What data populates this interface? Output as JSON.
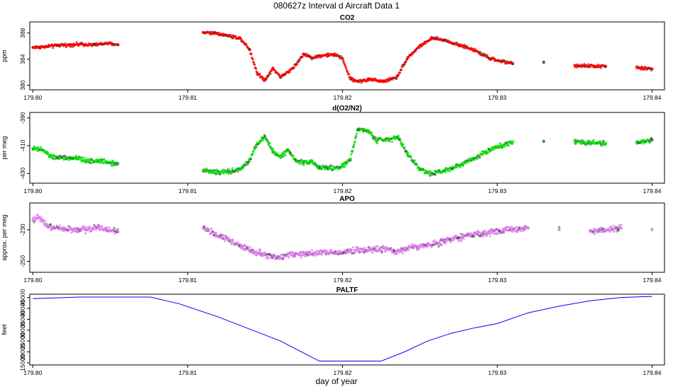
{
  "title": "080627z   Interval d Aircraft Data 1",
  "xlabel": "day of year",
  "chart_data": [
    {
      "type": "scatter",
      "title": "CO2",
      "ylabel": "ppm",
      "color": "#ff0000",
      "xlim": [
        179.7998,
        179.8408
      ],
      "ylim": [
        379.3,
        389.7
      ],
      "xticks": [
        179.8,
        179.81,
        179.82,
        179.83,
        179.84
      ],
      "xtick_labels": [
        "179.80",
        "179.81",
        "179.82",
        "179.83",
        "179.84"
      ],
      "yticks": [
        380,
        384,
        388
      ],
      "ytick_labels": [
        "380",
        "384",
        "388"
      ],
      "series": [
        {
          "x": [
            179.8,
            179.8008,
            179.8016,
            179.8024,
            179.8032,
            179.804,
            179.8048,
            179.8055,
            179.811,
            179.8118,
            179.8126,
            179.8134,
            179.814,
            179.8145,
            179.815,
            179.8155,
            179.816,
            179.8165,
            179.817,
            179.8175,
            179.818,
            179.8185,
            179.819,
            179.8195,
            179.82,
            179.8205,
            179.821,
            179.8218,
            179.8226,
            179.8235,
            179.8242,
            179.825,
            179.8258,
            179.8266,
            179.8275,
            179.8285,
            179.8295,
            179.831,
            179.833,
            179.835,
            179.837,
            179.839,
            179.84
          ],
          "y": [
            385.8,
            385.9,
            386.1,
            386.2,
            386.3,
            386.2,
            386.4,
            386.2,
            388.1,
            388.0,
            387.6,
            387.2,
            385.5,
            381.8,
            380.8,
            382.6,
            381.3,
            382.0,
            383.2,
            384.8,
            384.2,
            384.5,
            384.6,
            384.7,
            384.1,
            381.0,
            380.6,
            380.9,
            380.6,
            381.2,
            384.2,
            386.0,
            387.2,
            386.9,
            386.2,
            385.4,
            384.1,
            383.3,
            383.5,
            383.0,
            382.9,
            382.7,
            382.5
          ]
        }
      ]
    },
    {
      "type": "scatter",
      "title": "d(O2/N2)",
      "ylabel": "per meg",
      "color": "#00dd00",
      "xlim": [
        179.7998,
        179.8408
      ],
      "ylim": [
        -437,
        -386
      ],
      "xticks": [
        179.8,
        179.81,
        179.82,
        179.83,
        179.84
      ],
      "xtick_labels": [
        "179.80",
        "179.81",
        "179.82",
        "179.83",
        "179.84"
      ],
      "yticks": [
        -430,
        -410,
        -390
      ],
      "ytick_labels": [
        "-430",
        "-410",
        "-390"
      ],
      "series": [
        {
          "x": [
            179.8,
            179.8006,
            179.8012,
            179.802,
            179.8028,
            179.8036,
            179.8044,
            179.805,
            179.8055,
            179.811,
            179.8118,
            179.8126,
            179.8134,
            179.814,
            179.8145,
            179.815,
            179.8155,
            179.816,
            179.8165,
            179.817,
            179.8175,
            179.818,
            179.8185,
            179.819,
            179.8195,
            179.82,
            179.8205,
            179.821,
            179.8216,
            179.8222,
            179.823,
            179.8236,
            179.8242,
            179.825,
            179.8258,
            179.8266,
            179.8275,
            179.8285,
            179.8295,
            179.831,
            179.833,
            179.835,
            179.837,
            179.839,
            179.84
          ],
          "y": [
            -412,
            -413,
            -418,
            -419,
            -419,
            -421,
            -421,
            -422,
            -423,
            -428,
            -429,
            -429,
            -427,
            -421,
            -408,
            -404,
            -414,
            -418,
            -413,
            -421,
            -422,
            -421,
            -426,
            -426,
            -426,
            -425,
            -420,
            -398,
            -399,
            -406,
            -405,
            -404,
            -416,
            -427,
            -430,
            -428,
            -424,
            -419,
            -413,
            -407,
            -407,
            -407,
            -408,
            -408,
            -406
          ]
        }
      ]
    },
    {
      "type": "scatter",
      "title": "APO",
      "ylabel": "approx. per meg",
      "color": "#dd77ee",
      "xlim": [
        179.7998,
        179.8408
      ],
      "ylim": [
        -257,
        -213
      ],
      "xticks": [
        179.8,
        179.81,
        179.82,
        179.83,
        179.84
      ],
      "xtick_labels": [
        "179.80",
        "179.81",
        "179.82",
        "179.83",
        "179.84"
      ],
      "yticks": [
        -250,
        -230
      ],
      "ytick_labels": [
        "-250",
        "-230"
      ],
      "series": [
        {
          "x": [
            179.8,
            179.8005,
            179.801,
            179.8018,
            179.8026,
            179.8034,
            179.8042,
            179.8048,
            179.8055,
            179.811,
            179.8118,
            179.8126,
            179.8134,
            179.8142,
            179.815,
            179.8158,
            179.8166,
            179.8175,
            179.8185,
            179.8195,
            179.8205,
            179.8215,
            179.8225,
            179.8235,
            179.8245,
            179.8255,
            179.8265,
            179.8275,
            179.8285,
            179.8295,
            179.8305,
            179.832,
            179.834,
            179.836,
            179.838,
            179.84
          ],
          "y": [
            -224,
            -222,
            -228,
            -229,
            -230,
            -230,
            -228,
            -230,
            -231,
            -229,
            -233,
            -236,
            -240,
            -244,
            -246,
            -248,
            -245,
            -246,
            -244,
            -245,
            -243,
            -243,
            -242,
            -244,
            -241,
            -240,
            -237,
            -235,
            -233,
            -232,
            -230,
            -229,
            -230,
            -231,
            -229,
            -230
          ]
        }
      ]
    },
    {
      "type": "line",
      "title": "PALTF",
      "ylabel": "feet",
      "color": "#0000ff",
      "xlim": [
        179.7998,
        179.8408
      ],
      "ylim": [
        14000,
        46500
      ],
      "xticks": [
        179.8,
        179.81,
        179.82,
        179.83,
        179.84
      ],
      "xtick_labels": [
        "179.80",
        "179.81",
        "179.82",
        "179.83",
        "179.84"
      ],
      "yticks": [
        15000,
        20000,
        25000,
        30000,
        35000,
        40000,
        45000
      ],
      "ytick_labels": [
        "15000",
        "20000",
        "25000",
        "30000",
        "35000",
        "40000",
        "45000"
      ],
      "series": [
        {
          "x": [
            179.8,
            179.803,
            179.8076,
            179.8095,
            179.812,
            179.816,
            179.8185,
            179.8205,
            179.8225,
            179.824,
            179.8255,
            179.827,
            179.8285,
            179.83,
            179.832,
            179.834,
            179.836,
            179.838,
            179.84
          ],
          "y": [
            44500,
            45200,
            45200,
            42000,
            36000,
            25000,
            15800,
            15800,
            15800,
            20000,
            25000,
            28500,
            31000,
            33000,
            38000,
            41000,
            43500,
            45000,
            45500
          ]
        }
      ]
    }
  ]
}
